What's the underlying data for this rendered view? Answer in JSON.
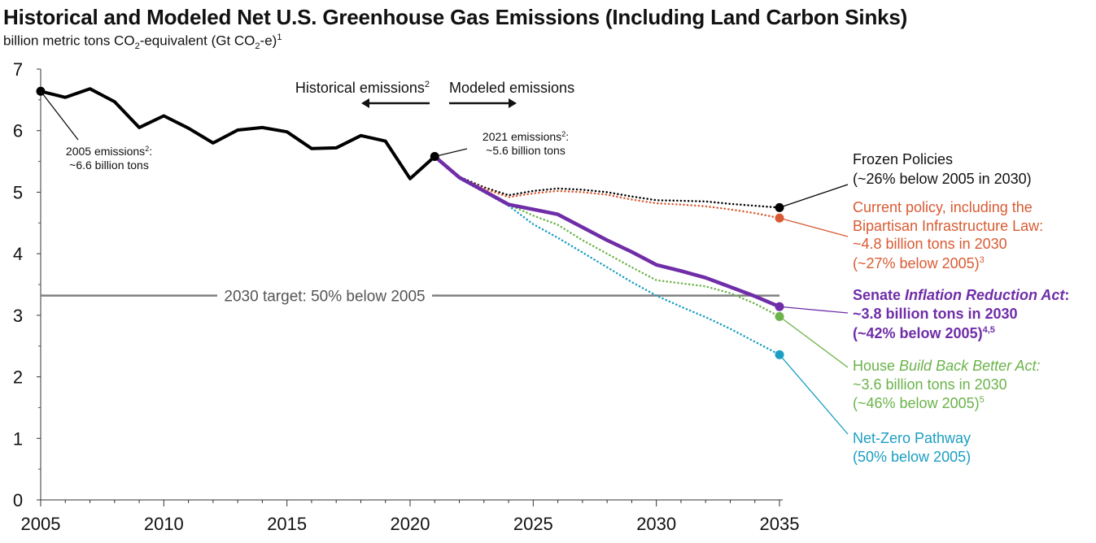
{
  "header": {
    "title": "Historical and Modeled Net U.S. Greenhouse Gas Emissions (Including Land Carbon Sinks)",
    "subtitle_main": "billion metric tons CO",
    "subtitle_sub1": "2",
    "subtitle_mid": "-equivalent (Gt CO",
    "subtitle_sub2": "2",
    "subtitle_end": "-e)",
    "subtitle_sup": "1"
  },
  "colors": {
    "historical": "#000000",
    "frozen": "#000000",
    "current": "#d95b33",
    "ira": "#6f2da8",
    "bbb": "#6bb34a",
    "netzero": "#1b9ec2",
    "target": "#808080"
  },
  "chart_data": {
    "type": "line",
    "title": "Historical and Modeled Net U.S. Greenhouse Gas Emissions (Including Land Carbon Sinks)",
    "ylabel": "billion metric tons CO2-equivalent (Gt CO2-e)",
    "xlim": [
      2005,
      2035
    ],
    "ylim": [
      0,
      7
    ],
    "x_ticks": [
      "2005",
      "2010",
      "2015",
      "2020",
      "2025",
      "2030",
      "2035"
    ],
    "y_ticks": [
      "0",
      "1",
      "2",
      "3",
      "4",
      "5",
      "6",
      "7"
    ],
    "series": [
      {
        "id": "historical",
        "style": "solid",
        "points": [
          [
            2005,
            6.64
          ],
          [
            2006,
            6.54
          ],
          [
            2007,
            6.68
          ],
          [
            2008,
            6.47
          ],
          [
            2009,
            6.05
          ],
          [
            2010,
            6.24
          ],
          [
            2011,
            6.04
          ],
          [
            2012,
            5.8
          ],
          [
            2013,
            6.01
          ],
          [
            2014,
            6.05
          ],
          [
            2015,
            5.98
          ],
          [
            2016,
            5.71
          ],
          [
            2017,
            5.72
          ],
          [
            2018,
            5.92
          ],
          [
            2019,
            5.83
          ],
          [
            2020,
            5.22
          ],
          [
            2021,
            5.58
          ]
        ]
      },
      {
        "id": "frozen",
        "name": "Frozen Policies",
        "style": "dotted",
        "points": [
          [
            2021,
            5.58
          ],
          [
            2022,
            5.25
          ],
          [
            2023,
            5.08
          ],
          [
            2024,
            4.95
          ],
          [
            2025,
            5.02
          ],
          [
            2026,
            5.06
          ],
          [
            2027,
            5.04
          ],
          [
            2028,
            5.0
          ],
          [
            2029,
            4.93
          ],
          [
            2030,
            4.87
          ],
          [
            2031,
            4.86
          ],
          [
            2032,
            4.85
          ],
          [
            2033,
            4.81
          ],
          [
            2034,
            4.78
          ],
          [
            2035,
            4.75
          ]
        ]
      },
      {
        "id": "current",
        "name": "Current policy, including the Bipartisan Infrastructure Law",
        "style": "dotted",
        "points": [
          [
            2021,
            5.58
          ],
          [
            2022,
            5.24
          ],
          [
            2023,
            5.06
          ],
          [
            2024,
            4.92
          ],
          [
            2025,
            4.98
          ],
          [
            2026,
            5.02
          ],
          [
            2027,
            5.0
          ],
          [
            2028,
            4.96
          ],
          [
            2029,
            4.88
          ],
          [
            2030,
            4.82
          ],
          [
            2031,
            4.8
          ],
          [
            2032,
            4.77
          ],
          [
            2033,
            4.72
          ],
          [
            2034,
            4.66
          ],
          [
            2035,
            4.58
          ]
        ]
      },
      {
        "id": "ira",
        "name": "Senate Inflation Reduction Act",
        "style": "solid",
        "points": [
          [
            2021,
            5.58
          ],
          [
            2022,
            5.24
          ],
          [
            2023,
            5.02
          ],
          [
            2024,
            4.8
          ],
          [
            2025,
            4.72
          ],
          [
            2026,
            4.64
          ],
          [
            2027,
            4.43
          ],
          [
            2028,
            4.22
          ],
          [
            2029,
            4.03
          ],
          [
            2030,
            3.82
          ],
          [
            2031,
            3.72
          ],
          [
            2032,
            3.61
          ],
          [
            2033,
            3.46
          ],
          [
            2034,
            3.31
          ],
          [
            2035,
            3.14
          ]
        ]
      },
      {
        "id": "bbb",
        "name": "House Build Back Better Act",
        "style": "dotted",
        "points": [
          [
            2021,
            5.58
          ],
          [
            2022,
            5.23
          ],
          [
            2023,
            5.0
          ],
          [
            2024,
            4.8
          ],
          [
            2025,
            4.62
          ],
          [
            2026,
            4.47
          ],
          [
            2027,
            4.22
          ],
          [
            2028,
            4.0
          ],
          [
            2029,
            3.78
          ],
          [
            2030,
            3.57
          ],
          [
            2031,
            3.52
          ],
          [
            2032,
            3.47
          ],
          [
            2033,
            3.36
          ],
          [
            2034,
            3.19
          ],
          [
            2035,
            2.98
          ]
        ]
      },
      {
        "id": "netzero",
        "name": "Net-Zero Pathway",
        "style": "dotted",
        "points": [
          [
            2021,
            5.58
          ],
          [
            2022,
            5.22
          ],
          [
            2023,
            5.0
          ],
          [
            2024,
            4.78
          ],
          [
            2025,
            4.48
          ],
          [
            2026,
            4.26
          ],
          [
            2027,
            4.02
          ],
          [
            2028,
            3.78
          ],
          [
            2029,
            3.54
          ],
          [
            2030,
            3.32
          ],
          [
            2031,
            3.14
          ],
          [
            2032,
            2.97
          ],
          [
            2033,
            2.78
          ],
          [
            2034,
            2.57
          ],
          [
            2035,
            2.36
          ]
        ]
      }
    ],
    "target_line": {
      "value": 3.32,
      "label": "2030 target: 50% below 2005"
    },
    "markers": [
      {
        "x": 2005,
        "y": 6.64,
        "series": "historical"
      },
      {
        "x": 2021,
        "y": 5.58,
        "series": "historical"
      },
      {
        "x": 2035,
        "y": 4.75,
        "series": "frozen"
      },
      {
        "x": 2035,
        "y": 4.58,
        "series": "current"
      },
      {
        "x": 2035,
        "y": 3.14,
        "series": "ira"
      },
      {
        "x": 2035,
        "y": 2.98,
        "series": "bbb"
      },
      {
        "x": 2035,
        "y": 2.36,
        "series": "netzero"
      }
    ],
    "annotations": {
      "historical_arrow": "Historical emissions",
      "historical_arrow_sup": "2",
      "modeled_arrow": "Modeled emissions",
      "e2005_line1": "2005 emissions",
      "e2005_sup": "2",
      "e2005_colon": ":",
      "e2005_line2": "~6.6 billion tons",
      "e2021_line1": "2021 emissions",
      "e2021_sup": "2",
      "e2021_colon": ":",
      "e2021_line2": "~5.6 billion tons"
    },
    "labels": {
      "frozen": {
        "l1": "Frozen Policies",
        "l2": "(~26% below 2005 in 2030)"
      },
      "current": {
        "l1": "Current policy, including the",
        "l2": "Bipartisan Infrastructure Law:",
        "l3": "~4.8 billion tons in 2030",
        "l4": "(~27% below 2005)",
        "l4_sup": "3"
      },
      "ira": {
        "l1a": "Senate ",
        "l1b": "Inflation Reduction Act",
        "l1c": ":",
        "l2": "~3.8 billion tons in 2030",
        "l3": "(~42% below 2005)",
        "l3_sup": "4,5"
      },
      "bbb": {
        "l1a": "House ",
        "l1b": "Build Back Better Act:",
        "l2": "~3.6 billion tons in 2030",
        "l3": "(~46% below 2005)",
        "l3_sup": "5"
      },
      "netzero": {
        "l1": "Net-Zero Pathway",
        "l2": "(50% below 2005)"
      }
    }
  }
}
